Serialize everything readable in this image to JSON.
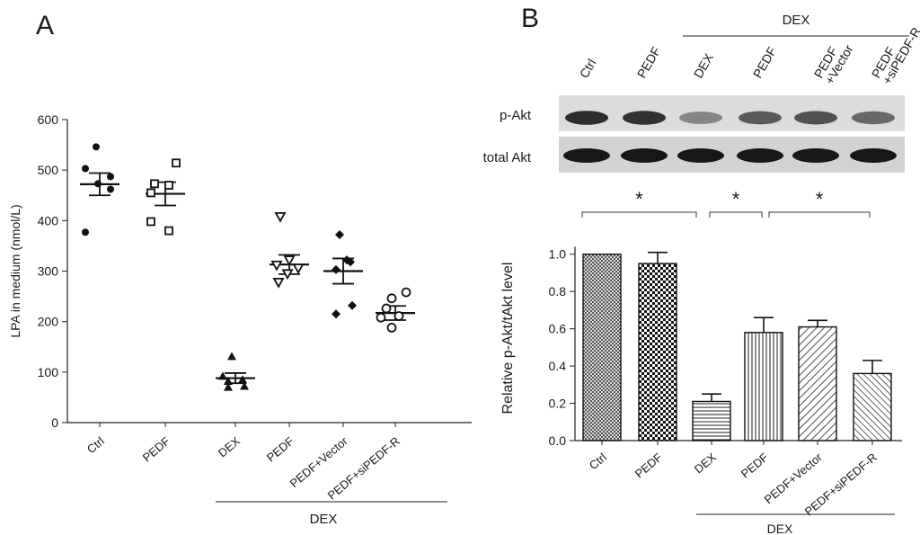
{
  "panel_a": {
    "letter": "A",
    "group_label": "DEX"
  },
  "panel_b": {
    "letter": "B",
    "group_label_top": "DEX",
    "group_label_bottom": "DEX",
    "blot_lanes": [
      "Ctrl",
      "PEDF",
      "DEX",
      "PEDF",
      "PEDF\n+Vector",
      "PEDF\n+siPEDF-R"
    ],
    "blot_rows": [
      "p-Akt",
      "total Akt"
    ],
    "pakt_intensity": [
      0.9,
      0.88,
      0.45,
      0.68,
      0.72,
      0.6
    ],
    "significance": [
      {
        "from": 0,
        "to": 2,
        "label": "*"
      },
      {
        "from": 2,
        "to": 3,
        "label": "*"
      },
      {
        "from": 3,
        "to": 5,
        "label": "*"
      }
    ]
  },
  "chart_data": [
    {
      "type": "scatter",
      "panel": "A",
      "ylabel": "LPA in medium (nmol/L)",
      "ylim": [
        0,
        600
      ],
      "yticks": [
        0,
        100,
        200,
        300,
        400,
        500,
        600
      ],
      "categories": [
        "Ctrl",
        "PEDF",
        "DEX",
        "PEDF",
        "PEDF+Vector",
        "PEDF+siPEDF-R"
      ],
      "markers": [
        "filled-circle",
        "open-square",
        "filled-triangle",
        "open-triangle-down",
        "filled-diamond",
        "open-circle"
      ],
      "points": [
        [
          546,
          503,
          487,
          473,
          462,
          377
        ],
        [
          514,
          473,
          470,
          455,
          398,
          380
        ],
        [
          131,
          92,
          85,
          82,
          72,
          70
        ],
        [
          408,
          322,
          312,
          306,
          295,
          278
        ],
        [
          372,
          322,
          318,
          303,
          232,
          215
        ],
        [
          258,
          246,
          226,
          211,
          208,
          188
        ]
      ],
      "mean": [
        472,
        453,
        88,
        313,
        300,
        217
      ],
      "sem": [
        22,
        23,
        10,
        19,
        25,
        14
      ]
    },
    {
      "type": "bar",
      "panel": "B",
      "ylabel": "Relative p-Akt/tAkt level",
      "ylim": [
        0,
        1.1
      ],
      "yticks": [
        0.0,
        0.2,
        0.4,
        0.6,
        0.8,
        1.0
      ],
      "categories": [
        "Ctrl",
        "PEDF",
        "DEX",
        "PEDF",
        "PEDF+Vector",
        "PEDF+siPEDF-R"
      ],
      "values": [
        1.0,
        0.95,
        0.21,
        0.58,
        0.61,
        0.36
      ],
      "errors": [
        0.0,
        0.06,
        0.04,
        0.08,
        0.035,
        0.07
      ],
      "patterns": [
        "crosshatch",
        "checker",
        "horizontal",
        "vertical",
        "diagonal",
        "diagonal-dense"
      ]
    }
  ]
}
